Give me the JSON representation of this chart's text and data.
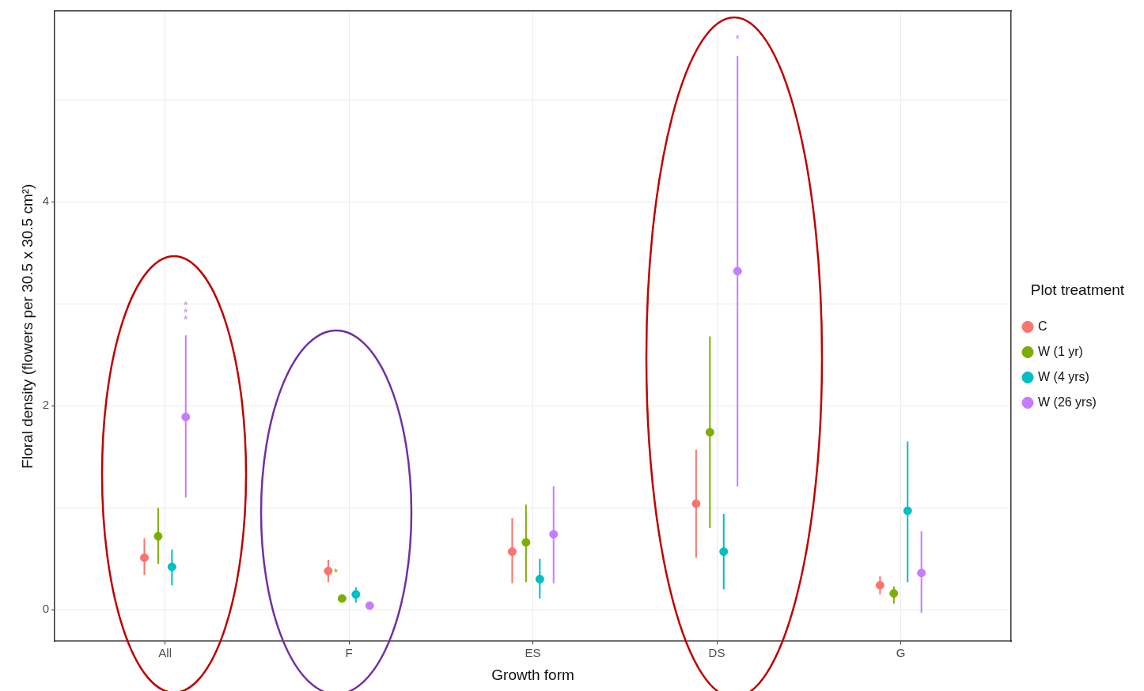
{
  "chart_data": {
    "type": "scatter",
    "xlabel": "Growth form",
    "ylabel": "Floral density (flowers per 30.5 x 30.5 cm²)",
    "legend_title": "Plot treatment",
    "categories": [
      "All",
      "F",
      "ES",
      "DS",
      "G"
    ],
    "series": [
      {
        "name": "C",
        "color": "#f8766d",
        "values": [
          0.51,
          0.38,
          0.57,
          1.04,
          0.24
        ],
        "errors": [
          [
            0.34,
            0.7
          ],
          [
            0.27,
            0.49
          ],
          [
            0.26,
            0.9
          ],
          [
            0.51,
            1.57
          ],
          [
            0.15,
            0.33
          ]
        ]
      },
      {
        "name": "W (1 yr)",
        "color": "#7cae00",
        "values": [
          0.72,
          0.11,
          0.66,
          1.74,
          0.16
        ],
        "errors": [
          [
            0.45,
            1.0
          ],
          [
            0.08,
            0.14
          ],
          [
            0.27,
            1.03
          ],
          [
            0.8,
            2.68
          ],
          [
            0.06,
            0.23
          ]
        ]
      },
      {
        "name": "W (4 yrs)",
        "color": "#00bfc4",
        "values": [
          0.42,
          0.15,
          0.3,
          0.57,
          0.97
        ],
        "errors": [
          [
            0.24,
            0.59
          ],
          [
            0.07,
            0.22
          ],
          [
            0.11,
            0.5
          ],
          [
            0.2,
            0.94
          ],
          [
            0.27,
            1.65
          ]
        ]
      },
      {
        "name": "W (26 yrs)",
        "color": "#c77cff",
        "values": [
          1.89,
          0.04,
          0.74,
          3.32,
          0.36
        ],
        "errors": [
          [
            1.1,
            2.69
          ],
          null,
          [
            0.26,
            1.21
          ],
          [
            1.21,
            5.43
          ],
          [
            -0.03,
            0.77
          ]
        ]
      }
    ],
    "ylim": [
      -0.31,
      5.87
    ],
    "yticks": [
      0,
      {
        "value": 1,
        "label": null
      },
      2,
      {
        "value": 3,
        "label": null
      },
      4,
      {
        "value": 5,
        "label": null
      }
    ],
    "annotations": [
      "***",
      "*",
      "*"
    ],
    "grid": true,
    "legend": "right",
    "marker": "circle"
  }
}
